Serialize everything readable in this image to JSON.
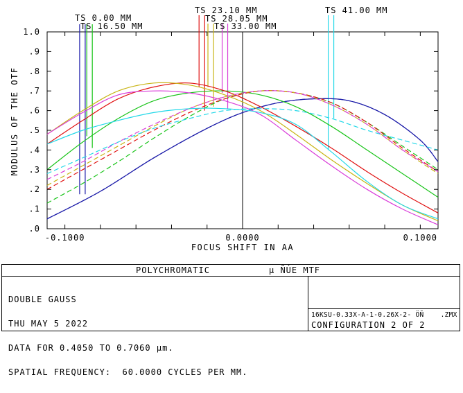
{
  "chart_data": {
    "type": "line",
    "xlabel": "FOCUS SHIFT IN  AA",
    "ylabel": "MODULUS OF THE OTF",
    "xlim": [
      -0.11,
      0.11
    ],
    "ylim": [
      0,
      1.0
    ],
    "x_ticks": [
      "-0.1000",
      "0.0000",
      "0.1000"
    ],
    "y_ticks": [
      ".0",
      ".1",
      ".2",
      ".3",
      ".4",
      ".5",
      ".6",
      ".7",
      ".8",
      ".9",
      "1.0"
    ],
    "field_labels": [
      "TS 0.00 MM",
      "TS 16.50 MM",
      "TS 23.10 MM",
      "TS 28.05 MM",
      "TS 33.00 MM",
      "TS 41.00 MM"
    ],
    "series": [
      {
        "field": "0.00 MM",
        "color": "#1a1aa8",
        "marker_x": -0.0917,
        "marker_tan": 0.175,
        "marker_sag": 0.175,
        "tangential": [
          [
            -0.11,
            0.05
          ],
          [
            -0.08,
            0.19
          ],
          [
            -0.05,
            0.36
          ],
          [
            -0.02,
            0.51
          ],
          [
            0.0,
            0.59
          ],
          [
            0.02,
            0.64
          ],
          [
            0.04,
            0.66
          ],
          [
            0.06,
            0.65
          ],
          [
            0.08,
            0.58
          ],
          [
            0.1,
            0.45
          ],
          [
            0.11,
            0.34
          ]
        ],
        "sagittal": [
          [
            -0.11,
            0.05
          ],
          [
            -0.08,
            0.19
          ],
          [
            -0.05,
            0.36
          ],
          [
            -0.02,
            0.51
          ],
          [
            0.0,
            0.59
          ],
          [
            0.02,
            0.64
          ],
          [
            0.04,
            0.66
          ],
          [
            0.06,
            0.65
          ],
          [
            0.08,
            0.58
          ],
          [
            0.1,
            0.45
          ],
          [
            0.11,
            0.34
          ]
        ]
      },
      {
        "field": "16.50 MM",
        "color": "#19c419",
        "marker_x": -0.0877,
        "marker_tan": 0.47,
        "marker_sag": 0.41,
        "tangential": [
          [
            -0.11,
            0.3
          ],
          [
            -0.09,
            0.44
          ],
          [
            -0.07,
            0.56
          ],
          [
            -0.05,
            0.65
          ],
          [
            -0.03,
            0.69
          ],
          [
            -0.01,
            0.7
          ],
          [
            0.01,
            0.68
          ],
          [
            0.03,
            0.62
          ],
          [
            0.05,
            0.52
          ],
          [
            0.07,
            0.4
          ],
          [
            0.09,
            0.28
          ],
          [
            0.11,
            0.16
          ]
        ],
        "sagittal": [
          [
            -0.11,
            0.13
          ],
          [
            -0.09,
            0.23
          ],
          [
            -0.07,
            0.34
          ],
          [
            -0.05,
            0.46
          ],
          [
            -0.03,
            0.57
          ],
          [
            -0.01,
            0.66
          ],
          [
            0.01,
            0.7
          ],
          [
            0.03,
            0.69
          ],
          [
            0.05,
            0.64
          ],
          [
            0.07,
            0.54
          ],
          [
            0.09,
            0.42
          ],
          [
            0.11,
            0.3
          ]
        ]
      },
      {
        "field": "23.10 MM",
        "color": "#e01010",
        "marker_x": -0.0245,
        "marker_tan": 0.72,
        "marker_sag": 0.6,
        "tangential": [
          [
            -0.11,
            0.43
          ],
          [
            -0.09,
            0.55
          ],
          [
            -0.07,
            0.66
          ],
          [
            -0.05,
            0.72
          ],
          [
            -0.03,
            0.74
          ],
          [
            -0.01,
            0.7
          ],
          [
            0.01,
            0.62
          ],
          [
            0.03,
            0.52
          ],
          [
            0.05,
            0.41
          ],
          [
            0.07,
            0.29
          ],
          [
            0.09,
            0.18
          ],
          [
            0.11,
            0.08
          ]
        ],
        "sagittal": [
          [
            -0.11,
            0.2
          ],
          [
            -0.09,
            0.3
          ],
          [
            -0.07,
            0.4
          ],
          [
            -0.05,
            0.5
          ],
          [
            -0.03,
            0.59
          ],
          [
            -0.01,
            0.66
          ],
          [
            0.01,
            0.7
          ],
          [
            0.03,
            0.69
          ],
          [
            0.05,
            0.64
          ],
          [
            0.07,
            0.54
          ],
          [
            0.09,
            0.41
          ],
          [
            0.11,
            0.29
          ]
        ]
      },
      {
        "field": "28.05 MM",
        "color": "#c8b414",
        "marker_x": -0.0195,
        "marker_tan": 0.72,
        "marker_sag": 0.62,
        "tangential": [
          [
            -0.11,
            0.48
          ],
          [
            -0.09,
            0.6
          ],
          [
            -0.07,
            0.7
          ],
          [
            -0.05,
            0.74
          ],
          [
            -0.03,
            0.73
          ],
          [
            -0.01,
            0.68
          ],
          [
            0.01,
            0.6
          ],
          [
            0.03,
            0.48
          ],
          [
            0.05,
            0.35
          ],
          [
            0.07,
            0.23
          ],
          [
            0.09,
            0.12
          ],
          [
            0.11,
            0.04
          ]
        ],
        "sagittal": [
          [
            -0.11,
            0.22
          ],
          [
            -0.09,
            0.32
          ],
          [
            -0.07,
            0.42
          ],
          [
            -0.05,
            0.52
          ],
          [
            -0.03,
            0.61
          ],
          [
            -0.01,
            0.67
          ],
          [
            0.01,
            0.7
          ],
          [
            0.03,
            0.69
          ],
          [
            0.05,
            0.63
          ],
          [
            0.07,
            0.53
          ],
          [
            0.09,
            0.4
          ],
          [
            0.11,
            0.28
          ]
        ]
      },
      {
        "field": "33.00 MM",
        "color": "#d93bd9",
        "marker_x": -0.0115,
        "marker_tan": 0.69,
        "marker_sag": 0.61,
        "tangential": [
          [
            -0.11,
            0.48
          ],
          [
            -0.09,
            0.59
          ],
          [
            -0.07,
            0.68
          ],
          [
            -0.05,
            0.7
          ],
          [
            -0.03,
            0.69
          ],
          [
            -0.01,
            0.65
          ],
          [
            0.01,
            0.58
          ],
          [
            0.03,
            0.45
          ],
          [
            0.05,
            0.32
          ],
          [
            0.07,
            0.2
          ],
          [
            0.09,
            0.1
          ],
          [
            0.11,
            0.02
          ]
        ],
        "sagittal": [
          [
            -0.11,
            0.25
          ],
          [
            -0.09,
            0.34
          ],
          [
            -0.07,
            0.44
          ],
          [
            -0.05,
            0.53
          ],
          [
            -0.03,
            0.61
          ],
          [
            -0.01,
            0.67
          ],
          [
            0.01,
            0.7
          ],
          [
            0.03,
            0.69
          ],
          [
            0.05,
            0.63
          ],
          [
            0.07,
            0.53
          ],
          [
            0.09,
            0.4
          ],
          [
            0.11,
            0.29
          ]
        ]
      },
      {
        "field": "41.00 MM",
        "color": "#22d8e8",
        "marker_x": 0.0482,
        "marker_tan": 0.4,
        "marker_sag": 0.56,
        "tangential": [
          [
            -0.11,
            0.43
          ],
          [
            -0.09,
            0.5
          ],
          [
            -0.07,
            0.55
          ],
          [
            -0.05,
            0.59
          ],
          [
            -0.03,
            0.61
          ],
          [
            -0.01,
            0.61
          ],
          [
            0.01,
            0.59
          ],
          [
            0.03,
            0.53
          ],
          [
            0.05,
            0.39
          ],
          [
            0.07,
            0.24
          ],
          [
            0.09,
            0.12
          ],
          [
            0.11,
            0.05
          ]
        ],
        "sagittal": [
          [
            -0.11,
            0.28
          ],
          [
            -0.09,
            0.36
          ],
          [
            -0.07,
            0.44
          ],
          [
            -0.05,
            0.51
          ],
          [
            -0.03,
            0.56
          ],
          [
            -0.01,
            0.6
          ],
          [
            0.01,
            0.61
          ],
          [
            0.03,
            0.6
          ],
          [
            0.05,
            0.56
          ],
          [
            0.07,
            0.5
          ],
          [
            0.09,
            0.45
          ],
          [
            0.11,
            0.4
          ]
        ]
      }
    ]
  },
  "footer": {
    "title": "POLYCHROMATIC",
    "title_right": "μ ÑÚE MTF",
    "lines": [
      "DOUBLE GAUSS",
      "THU MAY 5 2022",
      "DATA FOR 0.4050 TO 0.7060 μm.",
      "SPATIAL FREQUENCY:  60.0000 CYCLES PER MM."
    ],
    "file": "16KSU-0.33X-A-1-0.26X-2- ÖÑ    .ZMX",
    "config": "CONFIGURATION 2 OF 2"
  }
}
